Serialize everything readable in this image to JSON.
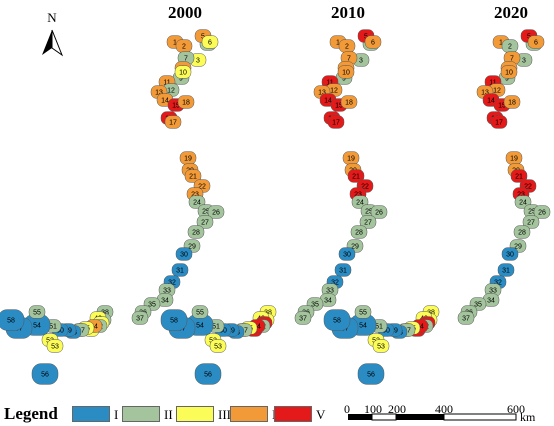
{
  "map": {
    "north_label": "N",
    "panels": [
      {
        "year": "2000",
        "classes": [
          "IV",
          "IV",
          "III",
          "II",
          "IV",
          "III",
          "II",
          "IV",
          "II",
          "III",
          "IV",
          "II",
          "IV",
          "IV",
          "V",
          "V",
          "IV",
          "IV",
          "IV",
          "IV",
          "IV",
          "IV",
          "IV",
          "II",
          "II",
          "II",
          "II",
          "II",
          "II",
          "I",
          "I",
          "I",
          "II",
          "II",
          "II",
          "II",
          "II",
          "II",
          "II",
          "III",
          "III",
          "II",
          "III",
          "IV",
          "III",
          "II",
          "II",
          "I",
          "I",
          "I",
          "II",
          "III",
          "III",
          "I",
          "II",
          "I",
          "I",
          "I"
        ]
      },
      {
        "year": "2010",
        "classes": [
          "IV",
          "IV",
          "II",
          "II",
          "V",
          "IV",
          "IV",
          "IV",
          "II",
          "IV",
          "V",
          "IV",
          "IV",
          "V",
          "V",
          "V",
          "V",
          "IV",
          "IV",
          "IV",
          "V",
          "V",
          "V",
          "II",
          "II",
          "II",
          "II",
          "II",
          "II",
          "I",
          "I",
          "I",
          "II",
          "II",
          "II",
          "II",
          "II",
          "III",
          "III",
          "III",
          "V",
          "II",
          "V",
          "V",
          "III",
          "II",
          "II",
          "I",
          "I",
          "I",
          "II",
          "III",
          "III",
          "I",
          "II",
          "I",
          "I",
          "I"
        ]
      },
      {
        "year": "2020",
        "classes": [
          "IV",
          "II",
          "II",
          "II",
          "V",
          "IV",
          "IV",
          "IV",
          "II",
          "IV",
          "V",
          "IV",
          "IV",
          "V",
          "V",
          "V",
          "V",
          "IV",
          "IV",
          "IV",
          "V",
          "V",
          "V",
          "II",
          "II",
          "II",
          "II",
          "II",
          "II",
          "I",
          "I",
          "I",
          "II",
          "II",
          "II",
          "II",
          "II",
          "III",
          "III",
          "III",
          "V",
          "II",
          "V",
          "V",
          "III",
          "II",
          "II",
          "I",
          "I",
          "I",
          "II",
          "III",
          "III",
          "I",
          "II",
          "I",
          "I",
          "I"
        ]
      }
    ]
  },
  "legend": {
    "title": "Legend",
    "items": [
      {
        "label": "I",
        "color": "#2b8cc4"
      },
      {
        "label": "II",
        "color": "#a3c49c"
      },
      {
        "label": "III",
        "color": "#fcfc58"
      },
      {
        "label": "IV",
        "color": "#f39a38"
      },
      {
        "label": "V",
        "color": "#e41a1a"
      }
    ]
  },
  "scale_bar": {
    "ticks": [
      "0",
      "100",
      "200",
      "400",
      "600"
    ],
    "unit": "km"
  }
}
